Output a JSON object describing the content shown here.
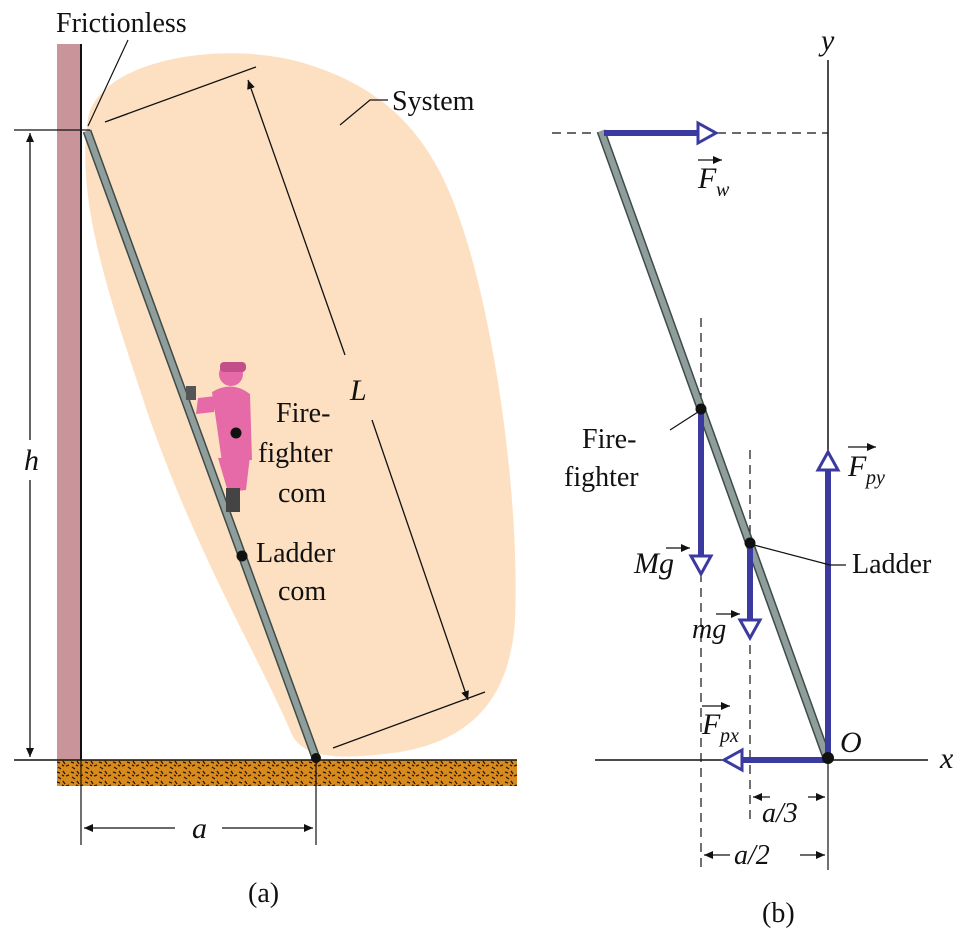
{
  "panel_a": {
    "caption": "(a)",
    "wall_label": "Frictionless",
    "system_label": "System",
    "height_label": "h",
    "length_label": "L",
    "base_label": "a",
    "firefighter_label_1": "Fire-",
    "firefighter_label_2": "fighter",
    "firefighter_label_3": "com",
    "ladder_label_1": "Ladder",
    "ladder_label_2": "com"
  },
  "panel_b": {
    "caption": "(b)",
    "y_axis": "y",
    "x_axis": "x",
    "origin": "O",
    "force_wall": "F",
    "force_wall_sub": "w",
    "force_py": "F",
    "force_py_sub": "py",
    "force_px": "F",
    "force_px_sub": "px",
    "weight_firefighter": "Mg",
    "weight_ladder": "mg",
    "firefighter_label_1": "Fire-",
    "firefighter_label_2": "fighter",
    "ladder_label": "Ladder",
    "dim_third": "a/3",
    "dim_half": "a/2"
  },
  "colors": {
    "wall": "#c9959a",
    "system": "#fde0c2",
    "ladder": "#8f9e9a",
    "force": "#3b3aa0",
    "ground": "#d98a1d",
    "firefighter": "#e66aa8"
  }
}
